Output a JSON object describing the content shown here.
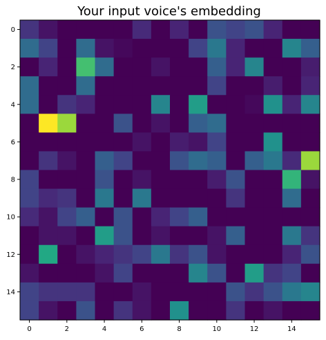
{
  "chart_data": {
    "type": "heatmap",
    "title": "Your input voice's embedding",
    "colormap": "viridis",
    "xlabel": "",
    "ylabel": "",
    "x_ticks": [
      0,
      2,
      4,
      6,
      8,
      10,
      12,
      14
    ],
    "y_ticks": [
      0,
      2,
      4,
      6,
      8,
      10,
      12,
      14
    ],
    "rows": 16,
    "cols": 16,
    "vmin": 0,
    "vmax": 1,
    "grid": false,
    "values": [
      [
        0.15,
        0.05,
        0.0,
        0.0,
        0.0,
        0.0,
        0.12,
        0.0,
        0.1,
        0.0,
        0.25,
        0.2,
        0.25,
        0.1,
        0.0,
        0.0
      ],
      [
        0.35,
        0.2,
        0.0,
        0.35,
        0.05,
        0.02,
        0.0,
        0.0,
        0.0,
        0.2,
        0.4,
        0.1,
        0.0,
        0.0,
        0.45,
        0.3
      ],
      [
        0.0,
        0.1,
        0.0,
        0.7,
        0.35,
        0.0,
        0.0,
        0.05,
        0.0,
        0.0,
        0.3,
        0.1,
        0.45,
        0.0,
        0.0,
        0.08
      ],
      [
        0.35,
        0.0,
        0.0,
        0.35,
        0.0,
        0.0,
        0.0,
        0.0,
        0.0,
        0.0,
        0.2,
        0.0,
        0.0,
        0.08,
        0.0,
        0.1
      ],
      [
        0.35,
        0.0,
        0.15,
        0.1,
        0.0,
        0.0,
        0.0,
        0.45,
        0.0,
        0.55,
        0.0,
        0.0,
        0.02,
        0.5,
        0.1,
        0.45
      ],
      [
        0.0,
        1.0,
        0.85,
        0.0,
        0.0,
        0.25,
        0.0,
        0.05,
        0.0,
        0.3,
        0.35,
        0.0,
        0.0,
        0.0,
        0.0,
        0.0
      ],
      [
        0.0,
        0.0,
        0.0,
        0.0,
        0.0,
        0.0,
        0.05,
        0.0,
        0.08,
        0.05,
        0.2,
        0.0,
        0.0,
        0.5,
        0.0,
        0.0
      ],
      [
        0.0,
        0.15,
        0.05,
        0.0,
        0.3,
        0.2,
        0.0,
        0.0,
        0.25,
        0.35,
        0.3,
        0.0,
        0.3,
        0.4,
        0.12,
        0.85
      ],
      [
        0.2,
        0.0,
        0.0,
        0.0,
        0.25,
        0.0,
        0.05,
        0.0,
        0.0,
        0.0,
        0.08,
        0.25,
        0.0,
        0.0,
        0.65,
        0.05
      ],
      [
        0.2,
        0.12,
        0.15,
        0.0,
        0.4,
        0.0,
        0.4,
        0.0,
        0.0,
        0.0,
        0.0,
        0.15,
        0.0,
        0.0,
        0.35,
        0.0
      ],
      [
        0.12,
        0.05,
        0.2,
        0.3,
        0.0,
        0.25,
        0.0,
        0.1,
        0.2,
        0.3,
        0.0,
        0.0,
        0.0,
        0.0,
        0.0,
        0.0
      ],
      [
        0.0,
        0.05,
        0.05,
        0.0,
        0.55,
        0.25,
        0.0,
        0.05,
        0.0,
        0.0,
        0.05,
        0.3,
        0.0,
        0.0,
        0.4,
        0.15
      ],
      [
        0.0,
        0.6,
        0.0,
        0.05,
        0.1,
        0.15,
        0.2,
        0.4,
        0.15,
        0.25,
        0.05,
        0.0,
        0.0,
        0.0,
        0.1,
        0.25
      ],
      [
        0.05,
        0.0,
        0.0,
        0.0,
        0.05,
        0.2,
        0.0,
        0.0,
        0.0,
        0.45,
        0.25,
        0.0,
        0.55,
        0.15,
        0.2,
        0.0
      ],
      [
        0.2,
        0.15,
        0.15,
        0.15,
        0.0,
        0.0,
        0.05,
        0.0,
        0.0,
        0.0,
        0.0,
        0.25,
        0.15,
        0.25,
        0.4,
        0.45
      ],
      [
        0.2,
        0.05,
        0.0,
        0.25,
        0.0,
        0.15,
        0.05,
        0.0,
        0.5,
        0.0,
        0.0,
        0.15,
        0.0,
        0.05,
        0.0,
        0.0
      ]
    ]
  }
}
